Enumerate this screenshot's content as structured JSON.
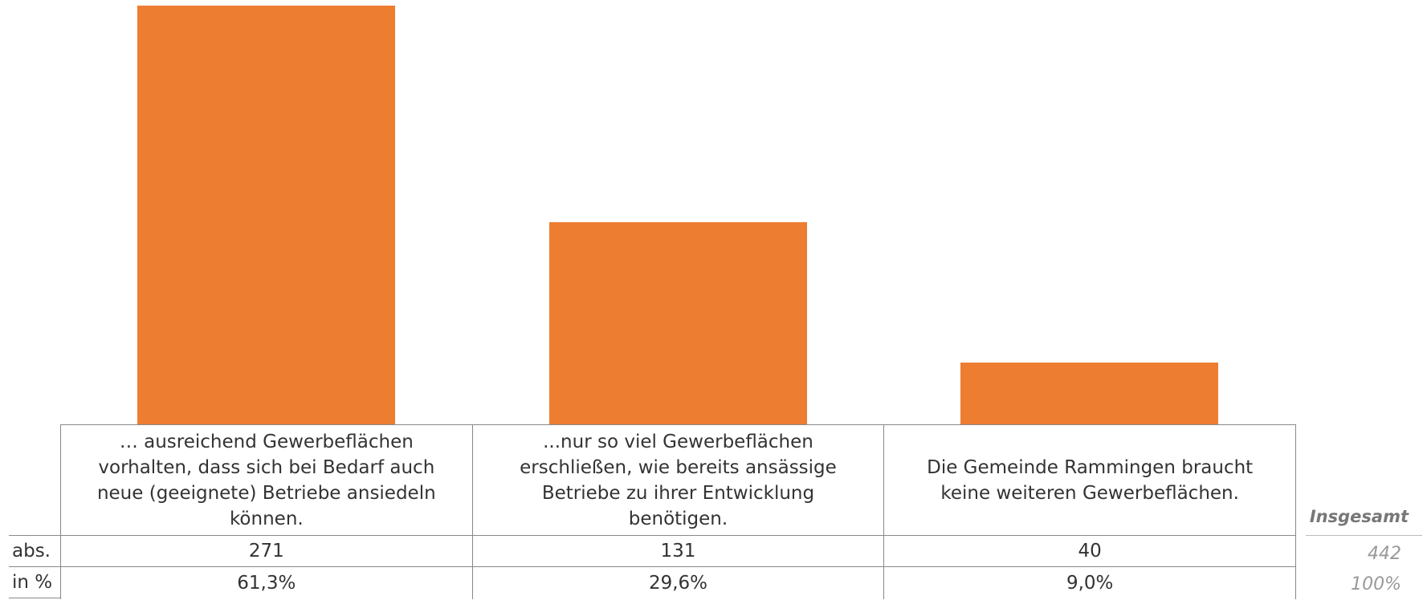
{
  "chart_data": {
    "type": "bar",
    "categories": [
      "… ausreichend Gewerbeflächen vorhalten, dass sich bei Bedarf auch neue (geeignete) Betriebe ansiedeln können.",
      "...nur so viel Gewerbeflächen erschließen, wie bereits ansässige Betriebe zu ihrer Entwicklung benötigen.",
      "Die Gemeinde Rammingen braucht keine weiteren Gewerbeflächen."
    ],
    "values": [
      271,
      131,
      40
    ],
    "color": "#ed7d31",
    "row_label": "abs.",
    "percent_row_label": "in %",
    "percent_labels": [
      "61,3%",
      "29,6%",
      "9,0%"
    ],
    "total_label": "Insgesamt",
    "total": 442,
    "total_percent_label": "100%"
  }
}
